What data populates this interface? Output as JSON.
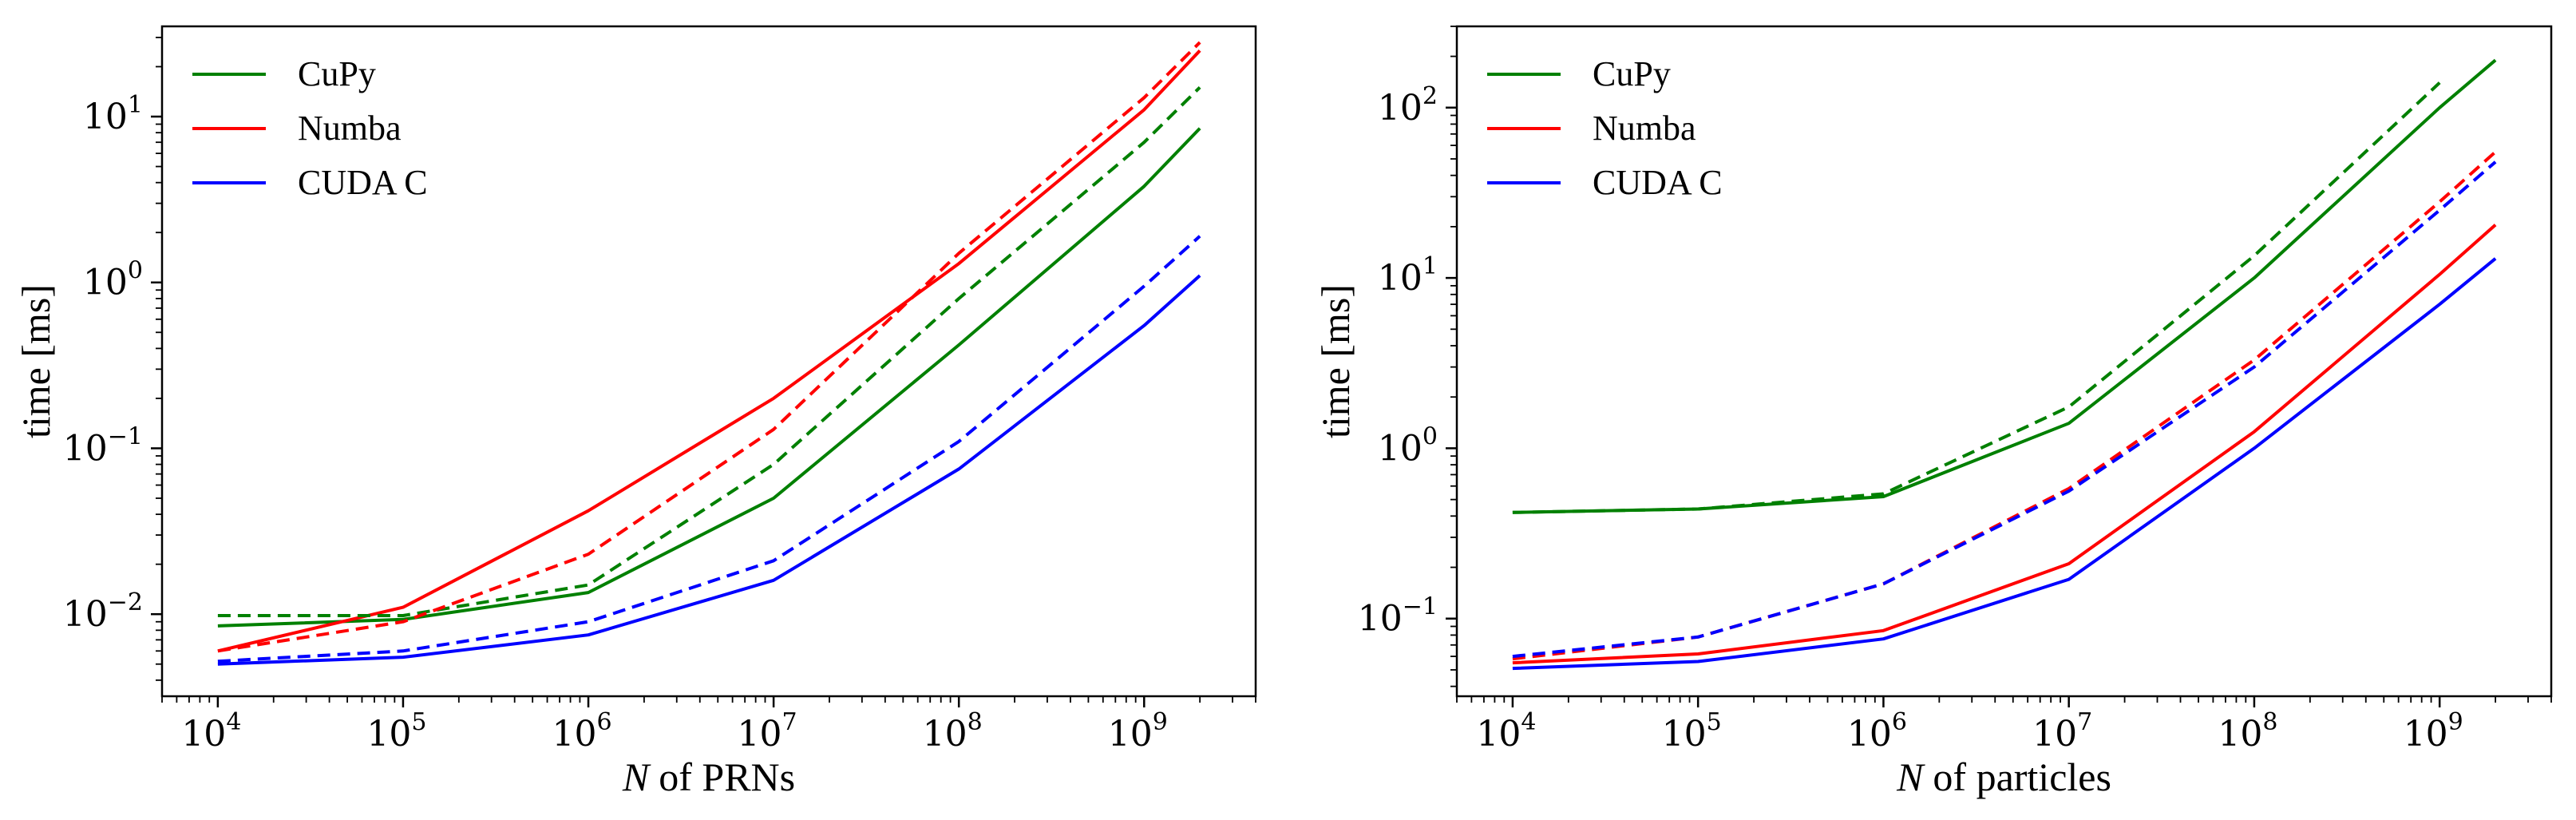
{
  "chart_data": [
    {
      "type": "line",
      "xscale": "log",
      "yscale": "log",
      "xlabel_italic": "N",
      "xlabel": "of PRNs",
      "ylabel": "time [ms]",
      "xlim": [
        5000,
        4000000000
      ],
      "ylim": [
        0.0032,
        35
      ],
      "xticks": [
        {
          "base": "10",
          "exp": "4",
          "value": 10000
        },
        {
          "base": "10",
          "exp": "5",
          "value": 100000
        },
        {
          "base": "10",
          "exp": "6",
          "value": 1000000
        },
        {
          "base": "10",
          "exp": "7",
          "value": 10000000
        },
        {
          "base": "10",
          "exp": "8",
          "value": 100000000
        },
        {
          "base": "10",
          "exp": "9",
          "value": 1000000000
        }
      ],
      "yticks": [
        {
          "base": "10",
          "exp": "−2",
          "value": 0.01
        },
        {
          "base": "10",
          "exp": "−1",
          "value": 0.1
        },
        {
          "base": "10",
          "exp": "0",
          "value": 1
        },
        {
          "base": "10",
          "exp": "1",
          "value": 10
        }
      ],
      "legend": {
        "placement": "top-left",
        "entries": [
          {
            "label": "CuPy",
            "color": "#008000"
          },
          {
            "label": "Numba",
            "color": "#ff0000"
          },
          {
            "label": "CUDA C",
            "color": "#0000ff"
          }
        ]
      },
      "series": [
        {
          "name": "CuPy",
          "style": "solid",
          "color": "#008000",
          "x": [
            10000,
            100000,
            1000000,
            10000000,
            100000000,
            1000000000,
            2000000000
          ],
          "y": [
            0.0085,
            0.0093,
            0.0135,
            0.05,
            0.42,
            3.8,
            8.5
          ]
        },
        {
          "name": "Numba",
          "style": "solid",
          "color": "#ff0000",
          "x": [
            10000,
            100000,
            1000000,
            10000000,
            100000000,
            1000000000,
            2000000000
          ],
          "y": [
            0.006,
            0.011,
            0.042,
            0.2,
            1.3,
            11,
            25
          ]
        },
        {
          "name": "CUDA C",
          "style": "solid",
          "color": "#0000ff",
          "x": [
            10000,
            100000,
            1000000,
            10000000,
            100000000,
            1000000000,
            2000000000
          ],
          "y": [
            0.005,
            0.0055,
            0.0075,
            0.016,
            0.075,
            0.55,
            1.1
          ]
        },
        {
          "name": "CuPy (dashed)",
          "style": "dashed",
          "color": "#008000",
          "x": [
            10000,
            100000,
            1000000,
            10000000,
            100000000,
            1000000000,
            2000000000
          ],
          "y": [
            0.0098,
            0.0098,
            0.015,
            0.08,
            0.8,
            7,
            15
          ]
        },
        {
          "name": "Numba (dashed)",
          "style": "dashed",
          "color": "#ff0000",
          "x": [
            10000,
            100000,
            1000000,
            10000000,
            100000000,
            1000000000,
            2000000000
          ],
          "y": [
            0.006,
            0.009,
            0.023,
            0.13,
            1.5,
            13,
            28
          ]
        },
        {
          "name": "CUDA C (dashed)",
          "style": "dashed",
          "color": "#0000ff",
          "x": [
            10000,
            100000,
            1000000,
            10000000,
            100000000,
            1000000000,
            2000000000
          ],
          "y": [
            0.0052,
            0.006,
            0.009,
            0.021,
            0.11,
            0.95,
            1.9
          ]
        }
      ]
    },
    {
      "type": "line",
      "xscale": "log",
      "yscale": "log",
      "xlabel_italic": "N",
      "xlabel": "of particles",
      "ylabel": "time [ms]",
      "xlim": [
        5000,
        4000000000
      ],
      "ylim": [
        0.035,
        300
      ],
      "xticks": [
        {
          "base": "10",
          "exp": "4",
          "value": 10000
        },
        {
          "base": "10",
          "exp": "5",
          "value": 100000
        },
        {
          "base": "10",
          "exp": "6",
          "value": 1000000
        },
        {
          "base": "10",
          "exp": "7",
          "value": 10000000
        },
        {
          "base": "10",
          "exp": "8",
          "value": 100000000
        },
        {
          "base": "10",
          "exp": "9",
          "value": 1000000000
        }
      ],
      "yticks": [
        {
          "base": "10",
          "exp": "−1",
          "value": 0.1
        },
        {
          "base": "10",
          "exp": "0",
          "value": 1
        },
        {
          "base": "10",
          "exp": "1",
          "value": 10
        },
        {
          "base": "10",
          "exp": "2",
          "value": 100
        }
      ],
      "legend": {
        "placement": "top-left",
        "entries": [
          {
            "label": "CuPy",
            "color": "#008000"
          },
          {
            "label": "Numba",
            "color": "#ff0000"
          },
          {
            "label": "CUDA C",
            "color": "#0000ff"
          }
        ]
      },
      "series": [
        {
          "name": "CuPy",
          "style": "solid",
          "color": "#008000",
          "x": [
            10000,
            100000,
            1000000,
            10000000,
            100000000,
            1000000000,
            2000000000
          ],
          "y": [
            0.42,
            0.44,
            0.52,
            1.4,
            10,
            100,
            190
          ]
        },
        {
          "name": "Numba",
          "style": "solid",
          "color": "#ff0000",
          "x": [
            10000,
            100000,
            1000000,
            10000000,
            100000000,
            1000000000,
            2000000000
          ],
          "y": [
            0.055,
            0.062,
            0.085,
            0.21,
            1.25,
            10.5,
            20.5
          ]
        },
        {
          "name": "CUDA C",
          "style": "solid",
          "color": "#0000ff",
          "x": [
            10000,
            100000,
            1000000,
            10000000,
            100000000,
            1000000000,
            2000000000
          ],
          "y": [
            0.051,
            0.056,
            0.076,
            0.17,
            1.0,
            7,
            13
          ]
        },
        {
          "name": "CuPy (dashed)",
          "style": "dashed",
          "color": "#008000",
          "x": [
            10000,
            100000,
            1000000,
            10000000,
            100000000,
            1000000000
          ],
          "y": [
            0.42,
            0.44,
            0.54,
            1.75,
            13.5,
            140
          ]
        },
        {
          "name": "Numba (dashed)",
          "style": "dashed",
          "color": "#ff0000",
          "x": [
            10000,
            100000,
            1000000,
            10000000,
            100000000,
            1000000000,
            2000000000
          ],
          "y": [
            0.058,
            0.078,
            0.16,
            0.58,
            3.3,
            28,
            55
          ]
        },
        {
          "name": "CUDA C (dashed)",
          "style": "dashed",
          "color": "#0000ff",
          "x": [
            10000,
            100000,
            1000000,
            10000000,
            100000000,
            1000000000,
            2000000000
          ],
          "y": [
            0.06,
            0.078,
            0.16,
            0.56,
            3.0,
            25,
            48
          ]
        }
      ]
    }
  ]
}
